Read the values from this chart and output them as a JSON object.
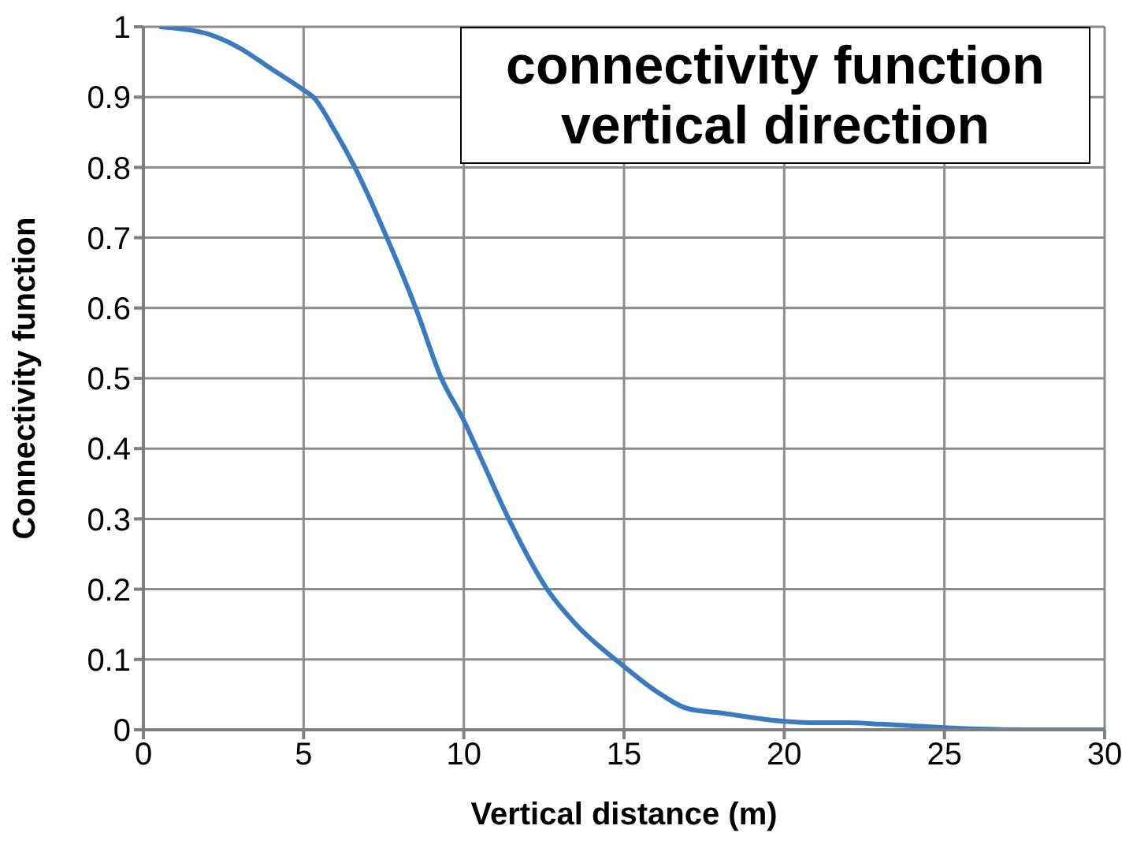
{
  "chart_data": {
    "type": "line",
    "title": "connectivity function\nvertical direction",
    "xlabel": "Vertical distance (m)",
    "ylabel": "Connectivity function",
    "series": [
      {
        "color": "#3a7bc0",
        "x": [
          0.5,
          1,
          2,
          3,
          4,
          5,
          5.3,
          6,
          6.6,
          7.6,
          8.5,
          9.3,
          10,
          10.5,
          11.4,
          12.6,
          13.5,
          15,
          16,
          17,
          18,
          20,
          21,
          22,
          23,
          25,
          26,
          28,
          30
        ],
        "values": [
          1,
          0.998,
          0.99,
          0.97,
          0.94,
          0.91,
          0.9,
          0.85,
          0.8,
          0.7,
          0.6,
          0.5,
          0.44,
          0.39,
          0.3,
          0.2,
          0.15,
          0.09,
          0.055,
          0.03,
          0.024,
          0.012,
          0.01,
          0.01,
          0.008,
          0.003,
          0.001,
          0,
          0
        ]
      }
    ],
    "xlim": [
      0,
      30
    ],
    "xticks": [
      0,
      5,
      10,
      15,
      20,
      25,
      30
    ],
    "ylim": [
      0,
      1
    ],
    "yticks": [
      0,
      0.1,
      0.2,
      0.3,
      0.4,
      0.5,
      0.6,
      0.7,
      0.8,
      0.9,
      1
    ],
    "grid": true,
    "marker": "none",
    "line_style": "solid"
  }
}
